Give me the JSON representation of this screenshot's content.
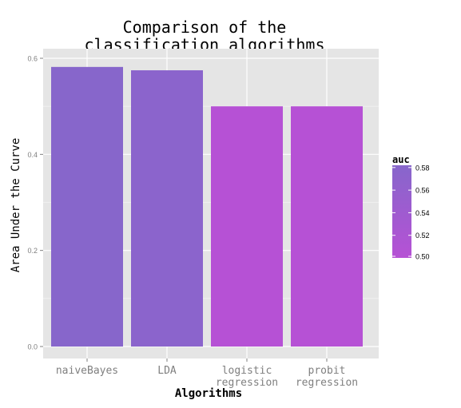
{
  "chart_data": {
    "type": "bar",
    "title": "Comparison of the\nclassification algorithms",
    "xlabel": "Algorithms",
    "ylabel": "Area Under the Curve",
    "categories": [
      "naiveBayes",
      "LDA",
      "logistic\nregression",
      "probit\nregression"
    ],
    "values": [
      0.582,
      0.575,
      0.5,
      0.5
    ],
    "ylim": [
      0,
      0.6
    ],
    "yticks": [
      "0.0",
      "0.2",
      "0.4",
      "0.6"
    ],
    "grid": true,
    "legend": {
      "title": "auc",
      "position": "right",
      "ticks": [
        "0.58",
        "0.56",
        "0.54",
        "0.52",
        "0.50"
      ],
      "tick_values": [
        0.58,
        0.56,
        0.54,
        0.52,
        0.5
      ],
      "range": [
        0.5,
        0.582
      ],
      "color_low": "#b651d5",
      "color_high": "#8766cb"
    },
    "colors": {
      "panel_bg": "#e5e5e5",
      "grid_major": "#ffffff",
      "grid_minor": "#f2f2f2",
      "tick_text": "#7f7f7f"
    }
  }
}
